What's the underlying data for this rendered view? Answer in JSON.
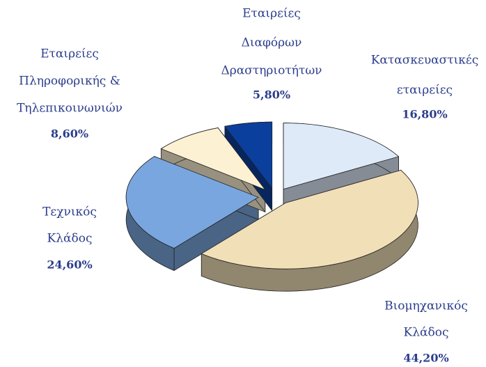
{
  "chart_data": {
    "type": "pie",
    "categories": [
      [
        "Κατασκευαστικές",
        "εταιρείες"
      ],
      [
        "Βιομηχανικός",
        "Κλάδος"
      ],
      [
        "Τεχνικός",
        "Κλάδος"
      ],
      [
        "Εταιρείες",
        "Πληροφορικής &",
        "Τηλεπικοινωνιών"
      ],
      [
        "Εταιρείες",
        "Διαφόρων",
        "Δραστηριοτήτων"
      ]
    ],
    "values": [
      16.8,
      44.2,
      24.6,
      8.6,
      5.8
    ],
    "value_labels": [
      "16,80%",
      "44,20%",
      "24,60%",
      "8,60%",
      "5,80%"
    ],
    "colors": [
      "#dfeaf8",
      "#f1dfb8",
      "#79a6de",
      "#fdf1d4",
      "#0b3f9e"
    ]
  }
}
